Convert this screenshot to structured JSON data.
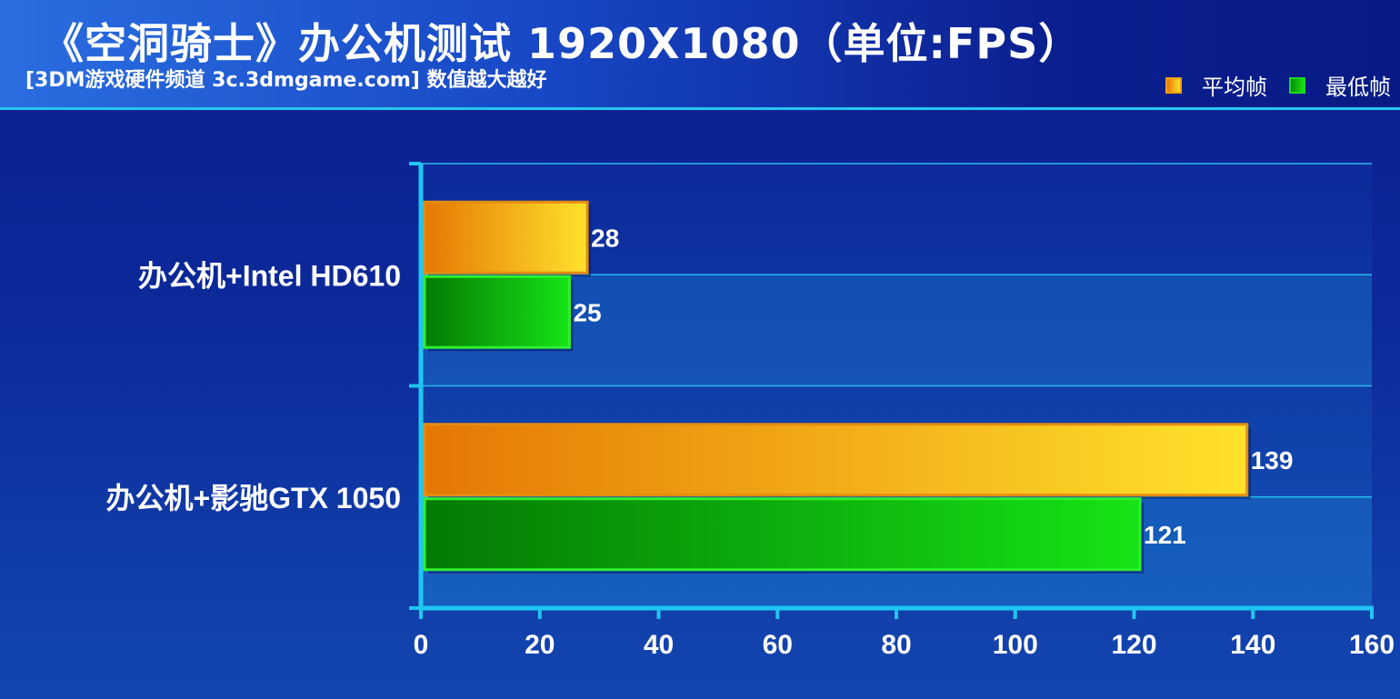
{
  "title": "《空洞骑士》办公机测试 1920X1080（单位:FPS）",
  "subtitle": "[3DM游戏硬件频道 3c.3dmgame.com] 数值越大越好",
  "legend": {
    "avg_label": "平均帧",
    "min_label": "最低帧"
  },
  "colors": {
    "avg_start": "#e57705",
    "avg_end": "#ffe22b",
    "avg_border": "#e38d10",
    "min_start": "#047a04",
    "min_end": "#16e316",
    "min_border": "#2ef02e",
    "axis": "#1fc6f2",
    "grid": "#27b9ea"
  },
  "chart_data": {
    "type": "bar",
    "orientation": "horizontal",
    "title": "《空洞骑士》办公机测试 1920X1080（单位:FPS）",
    "subtitle": "[3DM游戏硬件频道 3c.3dmgame.com] 数值越大越好",
    "categories": [
      "办公机+Intel HD610",
      "办公机+影驰GTX 1050"
    ],
    "series": [
      {
        "name": "平均帧",
        "values": [
          28,
          139
        ]
      },
      {
        "name": "最低帧",
        "values": [
          25,
          121
        ]
      }
    ],
    "xlim": [
      0,
      160
    ],
    "xticks": [
      0,
      20,
      40,
      60,
      80,
      100,
      120,
      140,
      160
    ],
    "grid": true,
    "legend_position": "top-right",
    "data_labels": true
  }
}
